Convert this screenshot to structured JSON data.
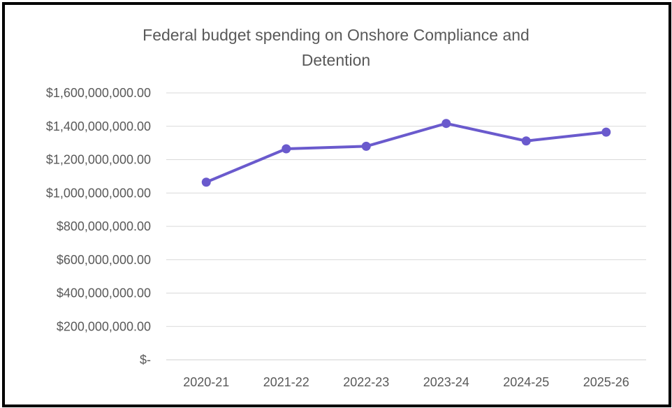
{
  "chart_data": {
    "type": "line",
    "title": "Federal budget spending on Onshore Compliance and Detention",
    "xlabel": "",
    "ylabel": "",
    "categories": [
      "2020-21",
      "2021-22",
      "2022-23",
      "2023-24",
      "2024-25",
      "2025-26"
    ],
    "series": [
      {
        "values": [
          1065000000,
          1265000000,
          1280000000,
          1417000000,
          1312000000,
          1365000000
        ],
        "color": "#6a5acd"
      }
    ],
    "ylim": [
      0,
      1600000000
    ],
    "y_ticks": [
      0,
      200000000,
      400000000,
      600000000,
      800000000,
      1000000000,
      1200000000,
      1400000000,
      1600000000
    ],
    "y_tick_labels": [
      "$-",
      "$200,000,000.00",
      "$400,000,000.00",
      "$600,000,000.00",
      "$800,000,000.00",
      "$1,000,000,000.00",
      "$1,200,000,000.00",
      "$1,400,000,000.00",
      "$1,600,000,000.00"
    ],
    "grid": true,
    "legend": "none"
  }
}
